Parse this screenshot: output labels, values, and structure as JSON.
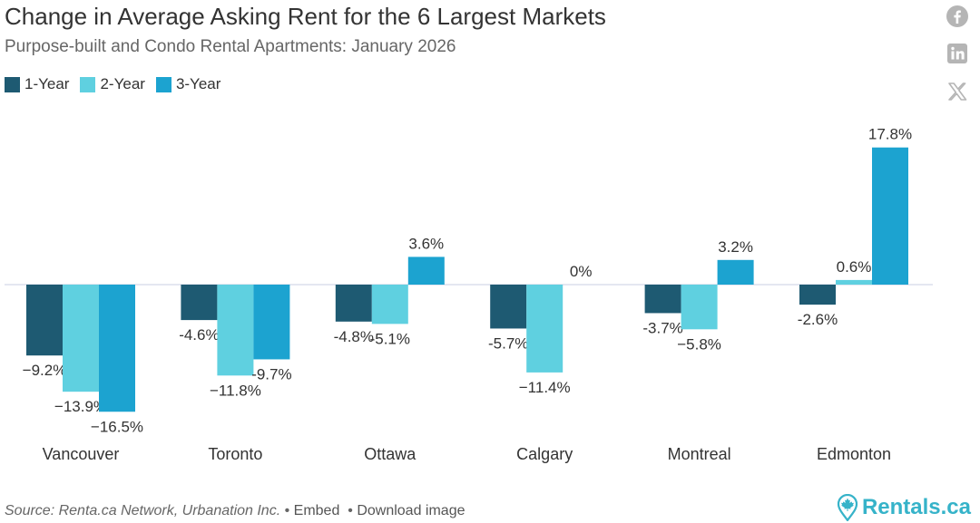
{
  "header": {
    "title": "Change in Average Asking Rent for the 6 Largest Markets",
    "subtitle": "Purpose-built and Condo Rental Apartments: January 2026"
  },
  "legend": [
    {
      "label": "1-Year",
      "color": "#1e5a72"
    },
    {
      "label": "2-Year",
      "color": "#5fd0e0"
    },
    {
      "label": "3-Year",
      "color": "#1ca3d0"
    }
  ],
  "share": {
    "icons": [
      "facebook-icon",
      "linkedin-icon",
      "x-icon"
    ]
  },
  "chart_data": {
    "type": "bar",
    "categories": [
      "Vancouver",
      "Toronto",
      "Ottawa",
      "Calgary",
      "Montreal",
      "Edmonton"
    ],
    "series": [
      {
        "name": "1-Year",
        "values": [
          -9.2,
          -4.6,
          -4.8,
          -5.7,
          -3.7,
          -2.6
        ],
        "labels": [
          "−9.2%",
          "-4.6%",
          "-4.8%",
          "-5.7%",
          "-3.7%",
          "-2.6%"
        ]
      },
      {
        "name": "2-Year",
        "values": [
          -13.9,
          -11.8,
          -5.1,
          -11.4,
          -5.8,
          0.6
        ],
        "labels": [
          "−13.9%",
          "−11.8%",
          "-5.1%",
          "−11.4%",
          "−5.8%",
          "0.6%"
        ]
      },
      {
        "name": "3-Year",
        "values": [
          -16.5,
          -9.7,
          3.6,
          0,
          3.2,
          17.8
        ],
        "labels": [
          "−16.5%",
          "-9.7%",
          "3.6%",
          "0%",
          "3.2%",
          "17.8%"
        ]
      }
    ],
    "ylim": [
      -18.8,
      18.8
    ],
    "colors": [
      "#1e5a72",
      "#5fd0e0",
      "#1ca3d0"
    ],
    "legend_position": "top-left",
    "grid": false
  },
  "footer": {
    "source": "Source: Renta.ca Network, Urbanation Inc.",
    "embed": "Embed",
    "download": "Download image",
    "brand": "Rentals.ca"
  }
}
